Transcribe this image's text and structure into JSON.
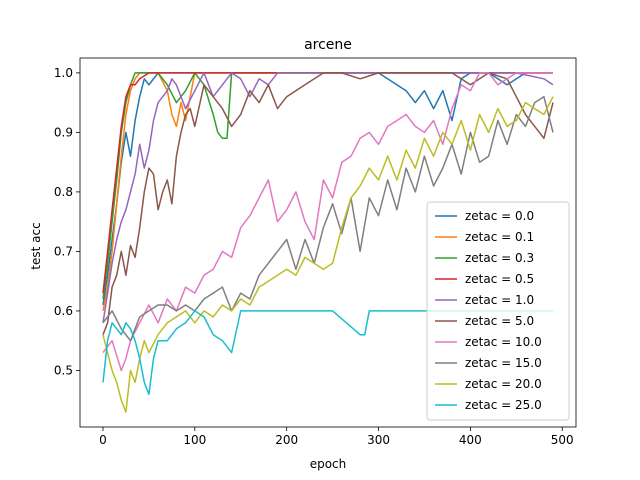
{
  "chart_data": {
    "type": "line",
    "title": "arcene",
    "xlabel": "epoch",
    "ylabel": "test acc",
    "xlim": [
      -25,
      515
    ],
    "ylim": [
      0.405,
      1.025
    ],
    "xticks": [
      0,
      100,
      200,
      300,
      400,
      500
    ],
    "yticks": [
      0.5,
      0.6,
      0.7,
      0.8,
      0.9,
      1.0
    ],
    "xtick_labels": [
      "0",
      "100",
      "200",
      "300",
      "400",
      "500"
    ],
    "ytick_labels": [
      "0.5",
      "0.6",
      "0.7",
      "0.8",
      "0.9",
      "1.0"
    ],
    "grid": false,
    "legend_position": "lower-right",
    "series": [
      {
        "name": "zetac = 0.0",
        "color": "#1f77b4",
        "x": [
          0,
          5,
          10,
          15,
          20,
          25,
          30,
          35,
          40,
          45,
          50,
          60,
          70,
          80,
          90,
          100,
          120,
          150,
          200,
          250,
          300,
          330,
          340,
          350,
          360,
          370,
          380,
          390,
          400,
          420,
          440,
          460,
          480,
          490
        ],
        "y": [
          0.61,
          0.66,
          0.72,
          0.78,
          0.85,
          0.9,
          0.86,
          0.92,
          0.96,
          0.99,
          0.98,
          1.0,
          1.0,
          1.0,
          1.0,
          1.0,
          1.0,
          1.0,
          1.0,
          1.0,
          1.0,
          0.97,
          0.95,
          0.97,
          0.94,
          0.97,
          0.92,
          0.99,
          1.0,
          1.0,
          0.98,
          1.0,
          1.0,
          1.0
        ]
      },
      {
        "name": "zetac = 0.1",
        "color": "#ff7f0e",
        "x": [
          0,
          5,
          10,
          15,
          20,
          25,
          30,
          35,
          40,
          50,
          60,
          70,
          75,
          80,
          85,
          90,
          95,
          100,
          110,
          120,
          150,
          200,
          250,
          300,
          350,
          400,
          450,
          490
        ],
        "y": [
          0.6,
          0.64,
          0.7,
          0.78,
          0.86,
          0.93,
          0.97,
          0.99,
          1.0,
          1.0,
          1.0,
          0.97,
          0.93,
          0.91,
          0.95,
          0.92,
          0.96,
          1.0,
          1.0,
          1.0,
          1.0,
          1.0,
          1.0,
          1.0,
          1.0,
          1.0,
          1.0,
          1.0
        ]
      },
      {
        "name": "zetac = 0.3",
        "color": "#2ca02c",
        "x": [
          0,
          5,
          10,
          15,
          20,
          25,
          30,
          35,
          40,
          45,
          50,
          60,
          70,
          80,
          90,
          100,
          110,
          120,
          125,
          130,
          135,
          140,
          150,
          200,
          250,
          300,
          350,
          400,
          450,
          490
        ],
        "y": [
          0.62,
          0.68,
          0.75,
          0.82,
          0.9,
          0.95,
          0.98,
          1.0,
          1.0,
          1.0,
          1.0,
          1.0,
          0.98,
          0.95,
          0.97,
          1.0,
          0.98,
          0.93,
          0.9,
          0.89,
          0.89,
          1.0,
          1.0,
          1.0,
          1.0,
          1.0,
          1.0,
          1.0,
          1.0,
          1.0
        ]
      },
      {
        "name": "zetac = 0.5",
        "color": "#d62728",
        "x": [
          0,
          5,
          10,
          15,
          20,
          25,
          30,
          35,
          40,
          50,
          60,
          70,
          80,
          100,
          150,
          200,
          250,
          300,
          350,
          400,
          450,
          490
        ],
        "y": [
          0.63,
          0.7,
          0.77,
          0.84,
          0.91,
          0.96,
          0.98,
          0.98,
          0.99,
          1.0,
          1.0,
          1.0,
          1.0,
          1.0,
          1.0,
          1.0,
          1.0,
          1.0,
          1.0,
          1.0,
          1.0,
          1.0
        ]
      },
      {
        "name": "zetac = 1.0",
        "color": "#9467bd",
        "x": [
          0,
          5,
          10,
          15,
          20,
          25,
          30,
          35,
          40,
          45,
          50,
          55,
          60,
          65,
          70,
          75,
          80,
          90,
          100,
          110,
          120,
          130,
          140,
          150,
          160,
          170,
          180,
          190,
          200,
          220,
          250,
          300,
          350,
          400,
          450,
          480,
          490
        ],
        "y": [
          0.58,
          0.63,
          0.68,
          0.72,
          0.75,
          0.77,
          0.8,
          0.83,
          0.88,
          0.84,
          0.87,
          0.92,
          0.95,
          0.96,
          0.97,
          0.99,
          0.98,
          0.94,
          0.97,
          1.0,
          0.96,
          0.98,
          1.0,
          0.99,
          0.96,
          0.99,
          0.98,
          1.0,
          1.0,
          1.0,
          1.0,
          1.0,
          1.0,
          1.0,
          1.0,
          0.99,
          0.98
        ]
      },
      {
        "name": "zetac = 5.0",
        "color": "#8c564b",
        "x": [
          0,
          5,
          10,
          15,
          20,
          25,
          30,
          35,
          40,
          45,
          50,
          55,
          60,
          65,
          70,
          75,
          80,
          85,
          90,
          95,
          100,
          110,
          120,
          130,
          140,
          150,
          160,
          170,
          180,
          190,
          200,
          220,
          240,
          260,
          280,
          300,
          320,
          340,
          360,
          380,
          400,
          420,
          440,
          450,
          460,
          470,
          480,
          490
        ],
        "y": [
          0.56,
          0.58,
          0.64,
          0.66,
          0.7,
          0.66,
          0.71,
          0.69,
          0.74,
          0.8,
          0.84,
          0.83,
          0.77,
          0.8,
          0.82,
          0.78,
          0.86,
          0.9,
          0.93,
          0.94,
          0.91,
          0.98,
          0.96,
          0.94,
          0.91,
          0.93,
          0.97,
          0.95,
          0.98,
          0.94,
          0.96,
          0.98,
          1.0,
          1.0,
          0.99,
          1.0,
          1.0,
          1.0,
          1.0,
          1.0,
          0.98,
          1.0,
          0.99,
          0.96,
          0.93,
          0.91,
          0.89,
          0.95
        ]
      },
      {
        "name": "zetac = 10.0",
        "color": "#e377c2",
        "x": [
          0,
          10,
          20,
          25,
          30,
          40,
          50,
          60,
          70,
          80,
          90,
          100,
          110,
          120,
          130,
          140,
          150,
          160,
          170,
          180,
          190,
          200,
          210,
          220,
          230,
          240,
          250,
          260,
          270,
          280,
          290,
          300,
          310,
          320,
          330,
          340,
          350,
          360,
          370,
          380,
          390,
          400,
          410,
          420,
          430,
          440,
          450,
          460,
          470,
          480,
          490
        ],
        "y": [
          0.53,
          0.55,
          0.5,
          0.52,
          0.55,
          0.58,
          0.61,
          0.58,
          0.62,
          0.6,
          0.64,
          0.63,
          0.66,
          0.67,
          0.7,
          0.69,
          0.74,
          0.76,
          0.79,
          0.82,
          0.75,
          0.77,
          0.8,
          0.75,
          0.72,
          0.82,
          0.79,
          0.85,
          0.86,
          0.89,
          0.9,
          0.88,
          0.91,
          0.92,
          0.93,
          0.91,
          0.9,
          0.92,
          0.88,
          0.94,
          0.98,
          0.97,
          1.0,
          1.0,
          0.98,
          0.99,
          1.0,
          1.0,
          1.0,
          1.0,
          1.0
        ]
      },
      {
        "name": "zetac = 15.0",
        "color": "#7f7f7f",
        "x": [
          0,
          10,
          20,
          30,
          40,
          50,
          60,
          70,
          80,
          90,
          100,
          110,
          120,
          130,
          140,
          150,
          160,
          170,
          180,
          190,
          200,
          210,
          220,
          230,
          240,
          250,
          260,
          270,
          280,
          290,
          300,
          310,
          320,
          330,
          340,
          350,
          360,
          370,
          380,
          390,
          400,
          410,
          420,
          430,
          440,
          450,
          460,
          470,
          480,
          490
        ],
        "y": [
          0.58,
          0.6,
          0.57,
          0.55,
          0.59,
          0.6,
          0.61,
          0.61,
          0.6,
          0.61,
          0.6,
          0.62,
          0.63,
          0.64,
          0.6,
          0.63,
          0.62,
          0.66,
          0.68,
          0.7,
          0.72,
          0.67,
          0.72,
          0.68,
          0.74,
          0.78,
          0.73,
          0.79,
          0.7,
          0.79,
          0.76,
          0.82,
          0.77,
          0.84,
          0.8,
          0.86,
          0.81,
          0.84,
          0.88,
          0.83,
          0.9,
          0.85,
          0.86,
          0.92,
          0.88,
          0.93,
          0.91,
          0.95,
          0.96,
          0.9
        ]
      },
      {
        "name": "zetac = 20.0",
        "color": "#bcbd22",
        "x": [
          0,
          10,
          15,
          20,
          25,
          30,
          35,
          40,
          45,
          50,
          60,
          70,
          80,
          90,
          100,
          110,
          120,
          130,
          140,
          150,
          160,
          170,
          180,
          190,
          200,
          210,
          220,
          230,
          240,
          250,
          260,
          270,
          280,
          290,
          300,
          310,
          320,
          330,
          340,
          350,
          360,
          370,
          380,
          390,
          400,
          410,
          420,
          430,
          440,
          450,
          460,
          470,
          480,
          490
        ],
        "y": [
          0.56,
          0.5,
          0.48,
          0.45,
          0.43,
          0.5,
          0.48,
          0.52,
          0.55,
          0.53,
          0.56,
          0.58,
          0.59,
          0.6,
          0.58,
          0.6,
          0.59,
          0.61,
          0.6,
          0.62,
          0.61,
          0.64,
          0.65,
          0.66,
          0.67,
          0.66,
          0.69,
          0.68,
          0.67,
          0.68,
          0.74,
          0.79,
          0.81,
          0.84,
          0.82,
          0.86,
          0.82,
          0.87,
          0.84,
          0.89,
          0.86,
          0.9,
          0.88,
          0.92,
          0.87,
          0.93,
          0.9,
          0.94,
          0.91,
          0.92,
          0.95,
          0.94,
          0.93,
          0.96
        ]
      },
      {
        "name": "zetac = 25.0",
        "color": "#17becf",
        "x": [
          0,
          5,
          10,
          15,
          20,
          25,
          30,
          35,
          40,
          45,
          50,
          55,
          60,
          70,
          80,
          90,
          100,
          110,
          120,
          130,
          140,
          150,
          200,
          250,
          280,
          285,
          290,
          300,
          350,
          400,
          450,
          490
        ],
        "y": [
          0.48,
          0.55,
          0.58,
          0.57,
          0.56,
          0.58,
          0.57,
          0.55,
          0.52,
          0.48,
          0.46,
          0.52,
          0.55,
          0.55,
          0.57,
          0.58,
          0.6,
          0.59,
          0.56,
          0.55,
          0.53,
          0.6,
          0.6,
          0.6,
          0.56,
          0.56,
          0.6,
          0.6,
          0.6,
          0.6,
          0.6,
          0.6
        ]
      }
    ]
  }
}
